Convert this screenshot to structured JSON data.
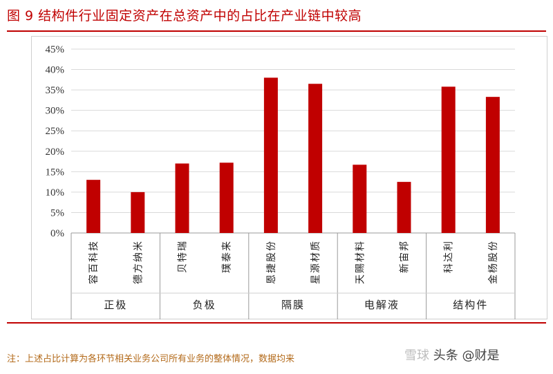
{
  "title": "图 9 结构件行业固定资产在总资产中的占比在产业链中较高",
  "note": "注：上述占比计算为各环节相关业务公司所有业务的整体情况，数据均来",
  "watermark": {
    "left_text": "雪球",
    "right_text": "头条 @财是"
  },
  "colors": {
    "accent": "#c00000",
    "bar": "#c00000",
    "note": "#b36a1a"
  },
  "chart_data": {
    "type": "bar",
    "title": "",
    "xlabel": "",
    "ylabel": "",
    "ylim": [
      0,
      0.45
    ],
    "yticks": [
      "0%",
      "5%",
      "10%",
      "15%",
      "20%",
      "25%",
      "30%",
      "35%",
      "40%",
      "45%"
    ],
    "grid": true,
    "categories": [
      "容百科技",
      "德方纳米",
      "贝特瑞",
      "璞泰来",
      "恩捷股份",
      "星源材质",
      "天赐材料",
      "新宙邦",
      "科达利",
      "金杨股份"
    ],
    "groups": [
      {
        "name": "正极",
        "size": 2
      },
      {
        "name": "负极",
        "size": 2
      },
      {
        "name": "隔膜",
        "size": 2
      },
      {
        "name": "电解液",
        "size": 2
      },
      {
        "name": "结构件",
        "size": 2
      }
    ],
    "values": [
      0.13,
      0.1,
      0.17,
      0.172,
      0.38,
      0.365,
      0.167,
      0.125,
      0.358,
      0.333
    ]
  }
}
